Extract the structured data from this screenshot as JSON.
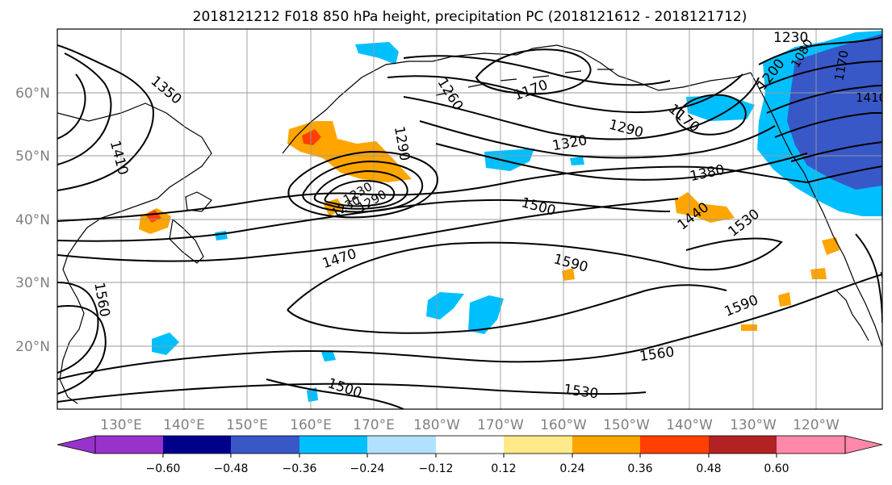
{
  "title": "2018121212 F018 850 hPa height, precipitation PC (2018121612 - 2018121712)",
  "map": {
    "lat_labels": [
      "60°N",
      "50°N",
      "40°N",
      "30°N",
      "20°N"
    ],
    "lon_labels": [
      "130°E",
      "140°E",
      "150°E",
      "160°E",
      "170°E",
      "180°W",
      "170°W",
      "160°W",
      "150°W",
      "140°W",
      "130°W",
      "120°W"
    ],
    "contour_labels": [
      "1350",
      "1410",
      "1560",
      "1470",
      "1260",
      "1290",
      "1170",
      "1320",
      "1290",
      "1170",
      "1200",
      "1230",
      "1380",
      "1440",
      "1530",
      "1500",
      "1590",
      "1590",
      "1560",
      "1530",
      "1500",
      "1530",
      "1230",
      "1290",
      "1230",
      "1080",
      "1170",
      "1410"
    ]
  },
  "colorbar": {
    "colors": [
      "#9932cc",
      "#00008b",
      "#3858c8",
      "#00bfff",
      "#b0e2ff",
      "#ffffff",
      "#ffe989",
      "#ffa500",
      "#ff4000",
      "#b22222",
      "#ff88aa"
    ],
    "tick_labels": [
      "−0.60",
      "−0.48",
      "−0.36",
      "−0.24",
      "−0.12",
      "0.12",
      "0.24",
      "0.36",
      "0.48",
      "0.60"
    ]
  }
}
